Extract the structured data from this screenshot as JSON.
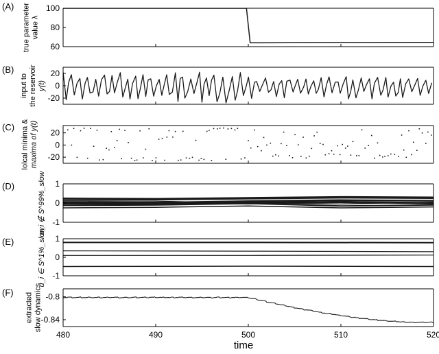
{
  "chart_data": {
    "type": "line",
    "x_axis": {
      "label": "time",
      "range": [
        480,
        520
      ],
      "ticks": [
        "480",
        "490",
        "500",
        "510",
        "520"
      ]
    },
    "panels": [
      {
        "id": "A",
        "panel_label": "(A)",
        "ylabel_lines": [
          "true parameter",
          "value λ"
        ],
        "yrange": [
          60,
          100
        ],
        "yticks": [
          "100",
          "80",
          "60"
        ],
        "series": [
          {
            "x": [
              480,
              499.8,
              500.2,
              520
            ],
            "y": [
              100,
              100,
              64,
              64.5
            ],
            "width": 1.5
          }
        ]
      },
      {
        "id": "B",
        "panel_label": "(B)",
        "ylabel_lines": [
          "input to",
          "the reservoir",
          "y(t)"
        ],
        "yrange": [
          -30,
          30
        ],
        "yticks": [
          "20",
          "0",
          "-20"
        ],
        "generated": "signal",
        "regime": {
          "before": {
            "high": 22,
            "low": -28
          },
          "after": {
            "high": 15,
            "low": -22
          },
          "switch": 500
        }
      },
      {
        "id": "C",
        "panel_label": "(C)",
        "ylabel_lines": [
          "lolcal minima &",
          "maxima of y(t)"
        ],
        "yrange": [
          -30,
          32
        ],
        "yticks": [
          "20",
          "0",
          "-20"
        ],
        "generated": "extrema"
      },
      {
        "id": "D",
        "panel_label": "(D)",
        "ylabel_lines": [
          "u_i ∉ S^99%_slow"
        ],
        "yrange": [
          -1,
          1
        ],
        "yticks": [
          "1",
          "0",
          "-1"
        ],
        "series": [
          {
            "x": [
              480,
              490,
              500,
              510,
              520
            ],
            "y": [
              0.22,
              0.2,
              0.25,
              0.3,
              0.28
            ],
            "width": 3.5
          },
          {
            "x": [
              480,
              490,
              500,
              510,
              520
            ],
            "y": [
              0.05,
              0.02,
              0.1,
              0.15,
              0.12
            ],
            "width": 2.5
          },
          {
            "x": [
              480,
              490,
              500,
              510,
              520
            ],
            "y": [
              -0.02,
              -0.05,
              0.02,
              0.05,
              0.0
            ],
            "width": 3
          },
          {
            "x": [
              480,
              490,
              500,
              510,
              520
            ],
            "y": [
              -0.12,
              -0.1,
              -0.02,
              -0.15,
              -0.1
            ],
            "width": 2
          },
          {
            "x": [
              480,
              490,
              500,
              510,
              520
            ],
            "y": [
              -0.25,
              -0.22,
              -0.15,
              -0.25,
              -0.2
            ],
            "width": 1.5
          },
          {
            "x": [
              480,
              490,
              500,
              510,
              520
            ],
            "y": [
              0.12,
              0.1,
              0.0,
              -0.05,
              0.05
            ],
            "width": 1.2
          },
          {
            "x": [
              480,
              490,
              500,
              510,
              520
            ],
            "y": [
              0.0,
              0.05,
              -0.05,
              0.1,
              -0.05
            ],
            "width": 1.2
          }
        ]
      },
      {
        "id": "E",
        "panel_label": "(E)",
        "ylabel_lines": [
          "u_i ∈ S^1%_slow"
        ],
        "yrange": [
          -1,
          1
        ],
        "yticks": [
          "1",
          "0",
          "-1"
        ],
        "series": [
          {
            "x": [
              480,
              500,
              520
            ],
            "y": [
              0.8,
              0.8,
              0.79
            ],
            "width": 2
          },
          {
            "x": [
              480,
              500,
              520
            ],
            "y": [
              0.35,
              0.33,
              0.3
            ],
            "width": 1.2
          },
          {
            "x": [
              480,
              500,
              520
            ],
            "y": [
              0.1,
              0.1,
              0.12
            ],
            "width": 1.2
          },
          {
            "x": [
              480,
              500,
              520
            ],
            "y": [
              -0.5,
              -0.48,
              -0.5
            ],
            "width": 1.5
          }
        ]
      },
      {
        "id": "F",
        "panel_label": "(F)",
        "ylabel_lines": [
          "extracted",
          "slow dynamics"
        ],
        "yrange": [
          -0.852,
          -0.786
        ],
        "yticks": [
          "-0.8",
          "-0.84"
        ],
        "generated": "slow",
        "slow": {
          "before": -0.801,
          "after": -0.8445,
          "start": 500,
          "settle": 518
        }
      }
    ],
    "colors": {
      "line": "#1a1a1a",
      "axis": "#000000"
    }
  }
}
